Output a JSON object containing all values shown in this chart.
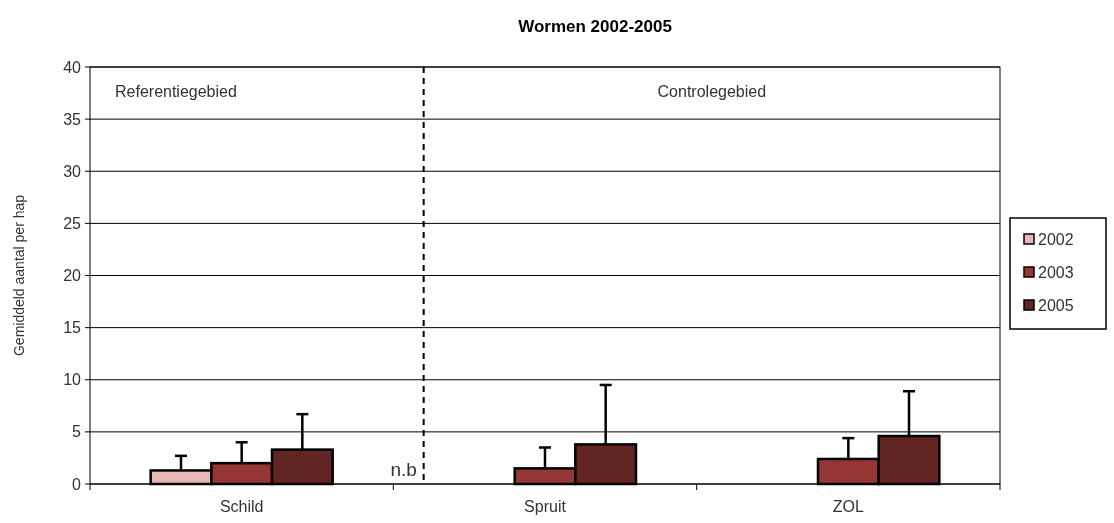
{
  "chart_data": {
    "type": "bar",
    "title": "Wormen 2002-2005",
    "ylabel": "Gemiddeld aantal per hap",
    "categories": [
      "Schild",
      "Spruit",
      "ZOL"
    ],
    "series": [
      {
        "name": "2002",
        "color": "#e6b8b7",
        "values": [
          1.3,
          null,
          null
        ],
        "errors": [
          [
            1.3,
            2.7
          ],
          null,
          null
        ]
      },
      {
        "name": "2003",
        "color": "#963634",
        "values": [
          2.0,
          1.5,
          2.4
        ],
        "errors": [
          [
            2.0,
            4.0
          ],
          [
            1.5,
            3.5
          ],
          [
            2.4,
            4.4
          ]
        ]
      },
      {
        "name": "2005",
        "color": "#632523",
        "values": [
          3.3,
          3.8,
          4.6
        ],
        "errors": [
          [
            3.3,
            6.7
          ],
          [
            3.8,
            9.5
          ],
          [
            4.6,
            8.9
          ]
        ]
      }
    ],
    "ylim": [
      0,
      40
    ],
    "yticks": [
      0,
      5,
      10,
      15,
      20,
      25,
      30,
      35,
      40
    ],
    "grid": "y",
    "legend": "right",
    "annotations": [
      "Referentiegebied",
      "Controlegebied",
      "n.b"
    ]
  }
}
